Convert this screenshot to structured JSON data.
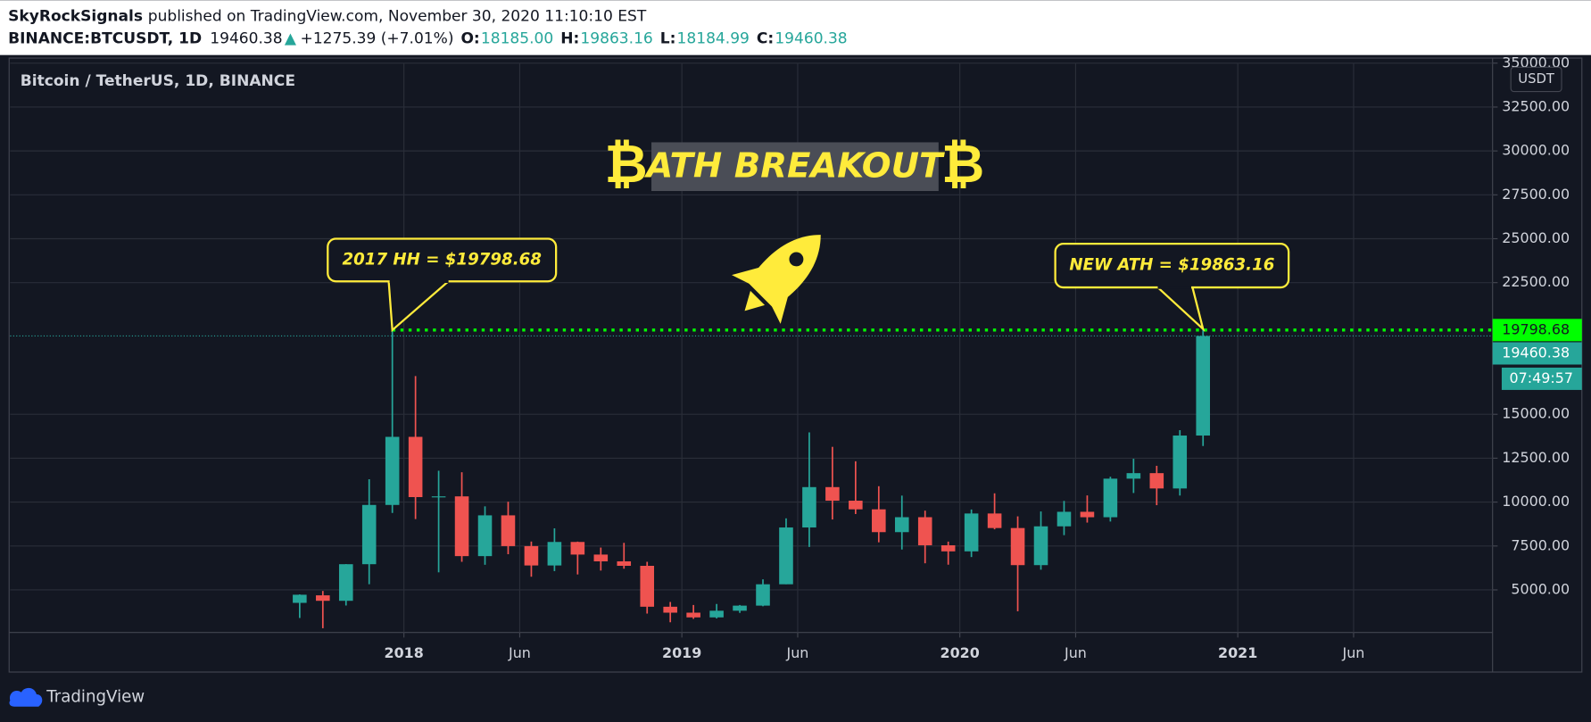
{
  "header": {
    "author": "SkyRockSignals",
    "published": "published on TradingView.com, November 30, 2020 11:10:10 EST",
    "symbol": "BINANCE:BTCUSDT, 1D",
    "last": "19460.38",
    "arrow": "▲",
    "change": "+1275.39 (+7.01%)",
    "ohlc": [
      {
        "key": "O:",
        "value": "18185.00"
      },
      {
        "key": "H:",
        "value": "19863.16"
      },
      {
        "key": "L:",
        "value": "18184.99"
      },
      {
        "key": "C:",
        "value": "19460.38"
      }
    ]
  },
  "chart_data": {
    "type": "candlestick",
    "title": "Bitcoin / TetherUS, 1D, BINANCE",
    "currency": "USDT",
    "banner": {
      "text": "ATH BREAKOUT",
      "symbol": "₿"
    },
    "x": [
      "2017-08",
      "2017-09",
      "2017-10",
      "2017-11",
      "2017-12",
      "2018-01",
      "2018-02",
      "2018-03",
      "2018-04",
      "2018-05",
      "2018-06",
      "2018-07",
      "2018-08",
      "2018-09",
      "2018-10",
      "2018-11",
      "2018-12",
      "2019-01",
      "2019-02",
      "2019-03",
      "2019-04",
      "2019-05",
      "2019-06",
      "2019-07",
      "2019-08",
      "2019-09",
      "2019-10",
      "2019-11",
      "2019-12",
      "2020-01",
      "2020-02",
      "2020-03",
      "2020-04",
      "2020-05",
      "2020-06",
      "2020-07",
      "2020-08",
      "2020-09",
      "2020-10",
      "2020-11"
    ],
    "open": [
      4261,
      4690,
      4378,
      6463,
      9838,
      13716,
      10285,
      10326,
      6923,
      9246,
      7494,
      6391,
      7730,
      7011,
      6626,
      6371,
      4041,
      3702,
      3434,
      3813,
      4103,
      5320,
      8555,
      10854,
      10080,
      9588,
      8289,
      9140,
      7541,
      7195,
      9351,
      8523,
      6410,
      8620,
      9448,
      9138,
      11335,
      11649,
      10776,
      13791
    ],
    "high": [
      4745,
      4939,
      6470,
      11300,
      19798.68,
      17176,
      11786,
      11700,
      9759,
      10020,
      7754,
      8507,
      7750,
      7410,
      7680,
      6600,
      4313,
      4140,
      4198,
      4140,
      5600,
      9074,
      13970,
      13147,
      12325,
      10905,
      10370,
      9513,
      7750,
      9578,
      10500,
      9188,
      9467,
      10067,
      10380,
      11444,
      12468,
      12067,
      14100,
      19863.16
    ],
    "low": [
      3400,
      2817,
      4110,
      5325,
      9380,
      9035,
      6000,
      6600,
      6430,
      7032,
      5750,
      6070,
      5880,
      6100,
      6205,
      3652,
      3156,
      3349,
      3373,
      3690,
      4067,
      5320,
      7444,
      9010,
      9320,
      7710,
      7300,
      6515,
      6435,
      6871,
      8450,
      3782,
      6150,
      8117,
      8833,
      8893,
      10518,
      9825,
      10374,
      13195
    ],
    "close": [
      4724,
      4378,
      6463,
      9838,
      13716,
      10285,
      10326,
      6923,
      9246,
      7494,
      6391,
      7730,
      7011,
      6626,
      6371,
      4041,
      3702,
      3434,
      3813,
      4103,
      5320,
      8555,
      10854,
      10080,
      9588,
      8289,
      9140,
      7541,
      7195,
      9351,
      8523,
      6410,
      8620,
      9448,
      9138,
      11335,
      11649,
      10776,
      13791,
      19460.38
    ],
    "up_color": "#26a69a",
    "down_color": "#ef5350",
    "xlim": [
      "2016-08",
      "2021-12"
    ],
    "xticks": [
      {
        "value": "2018-01",
        "label": "2018"
      },
      {
        "value": "2018-06",
        "label": "Jun"
      },
      {
        "value": "2019-01",
        "label": "2019"
      },
      {
        "value": "2019-06",
        "label": "Jun"
      },
      {
        "value": "2020-01",
        "label": "2020"
      },
      {
        "value": "2020-06",
        "label": "Jun"
      },
      {
        "value": "2021-01",
        "label": "2021"
      },
      {
        "value": "2021-06",
        "label": "Jun"
      }
    ],
    "ylim": [
      2575,
      35000
    ],
    "yticks": [
      {
        "value": 5000,
        "label": "5000.00"
      },
      {
        "value": 7500,
        "label": "7500.00"
      },
      {
        "value": 10000,
        "label": "10000.00"
      },
      {
        "value": 12500,
        "label": "12500.00"
      },
      {
        "value": 15000,
        "label": "15000.00"
      },
      {
        "value": 22500,
        "label": "22500.00"
      },
      {
        "value": 25000,
        "label": "25000.00"
      },
      {
        "value": 27500,
        "label": "27500.00"
      },
      {
        "value": 30000,
        "label": "30000.00"
      },
      {
        "value": 32500,
        "label": "32500.00"
      },
      {
        "value": 35000,
        "label": "35000.00"
      }
    ],
    "grid": true,
    "levels": [
      {
        "value": 19798.68,
        "color": "#00ff00"
      },
      {
        "value": 19460.38,
        "color": "#26a69a"
      }
    ],
    "countdown": "07:49:57",
    "callouts": [
      {
        "text": "2017 HH = $19798.68",
        "x": "2017-12"
      },
      {
        "text": "NEW ATH = $19863.16",
        "x": "2020-11"
      }
    ]
  },
  "footer": {
    "brand": "TradingView"
  }
}
